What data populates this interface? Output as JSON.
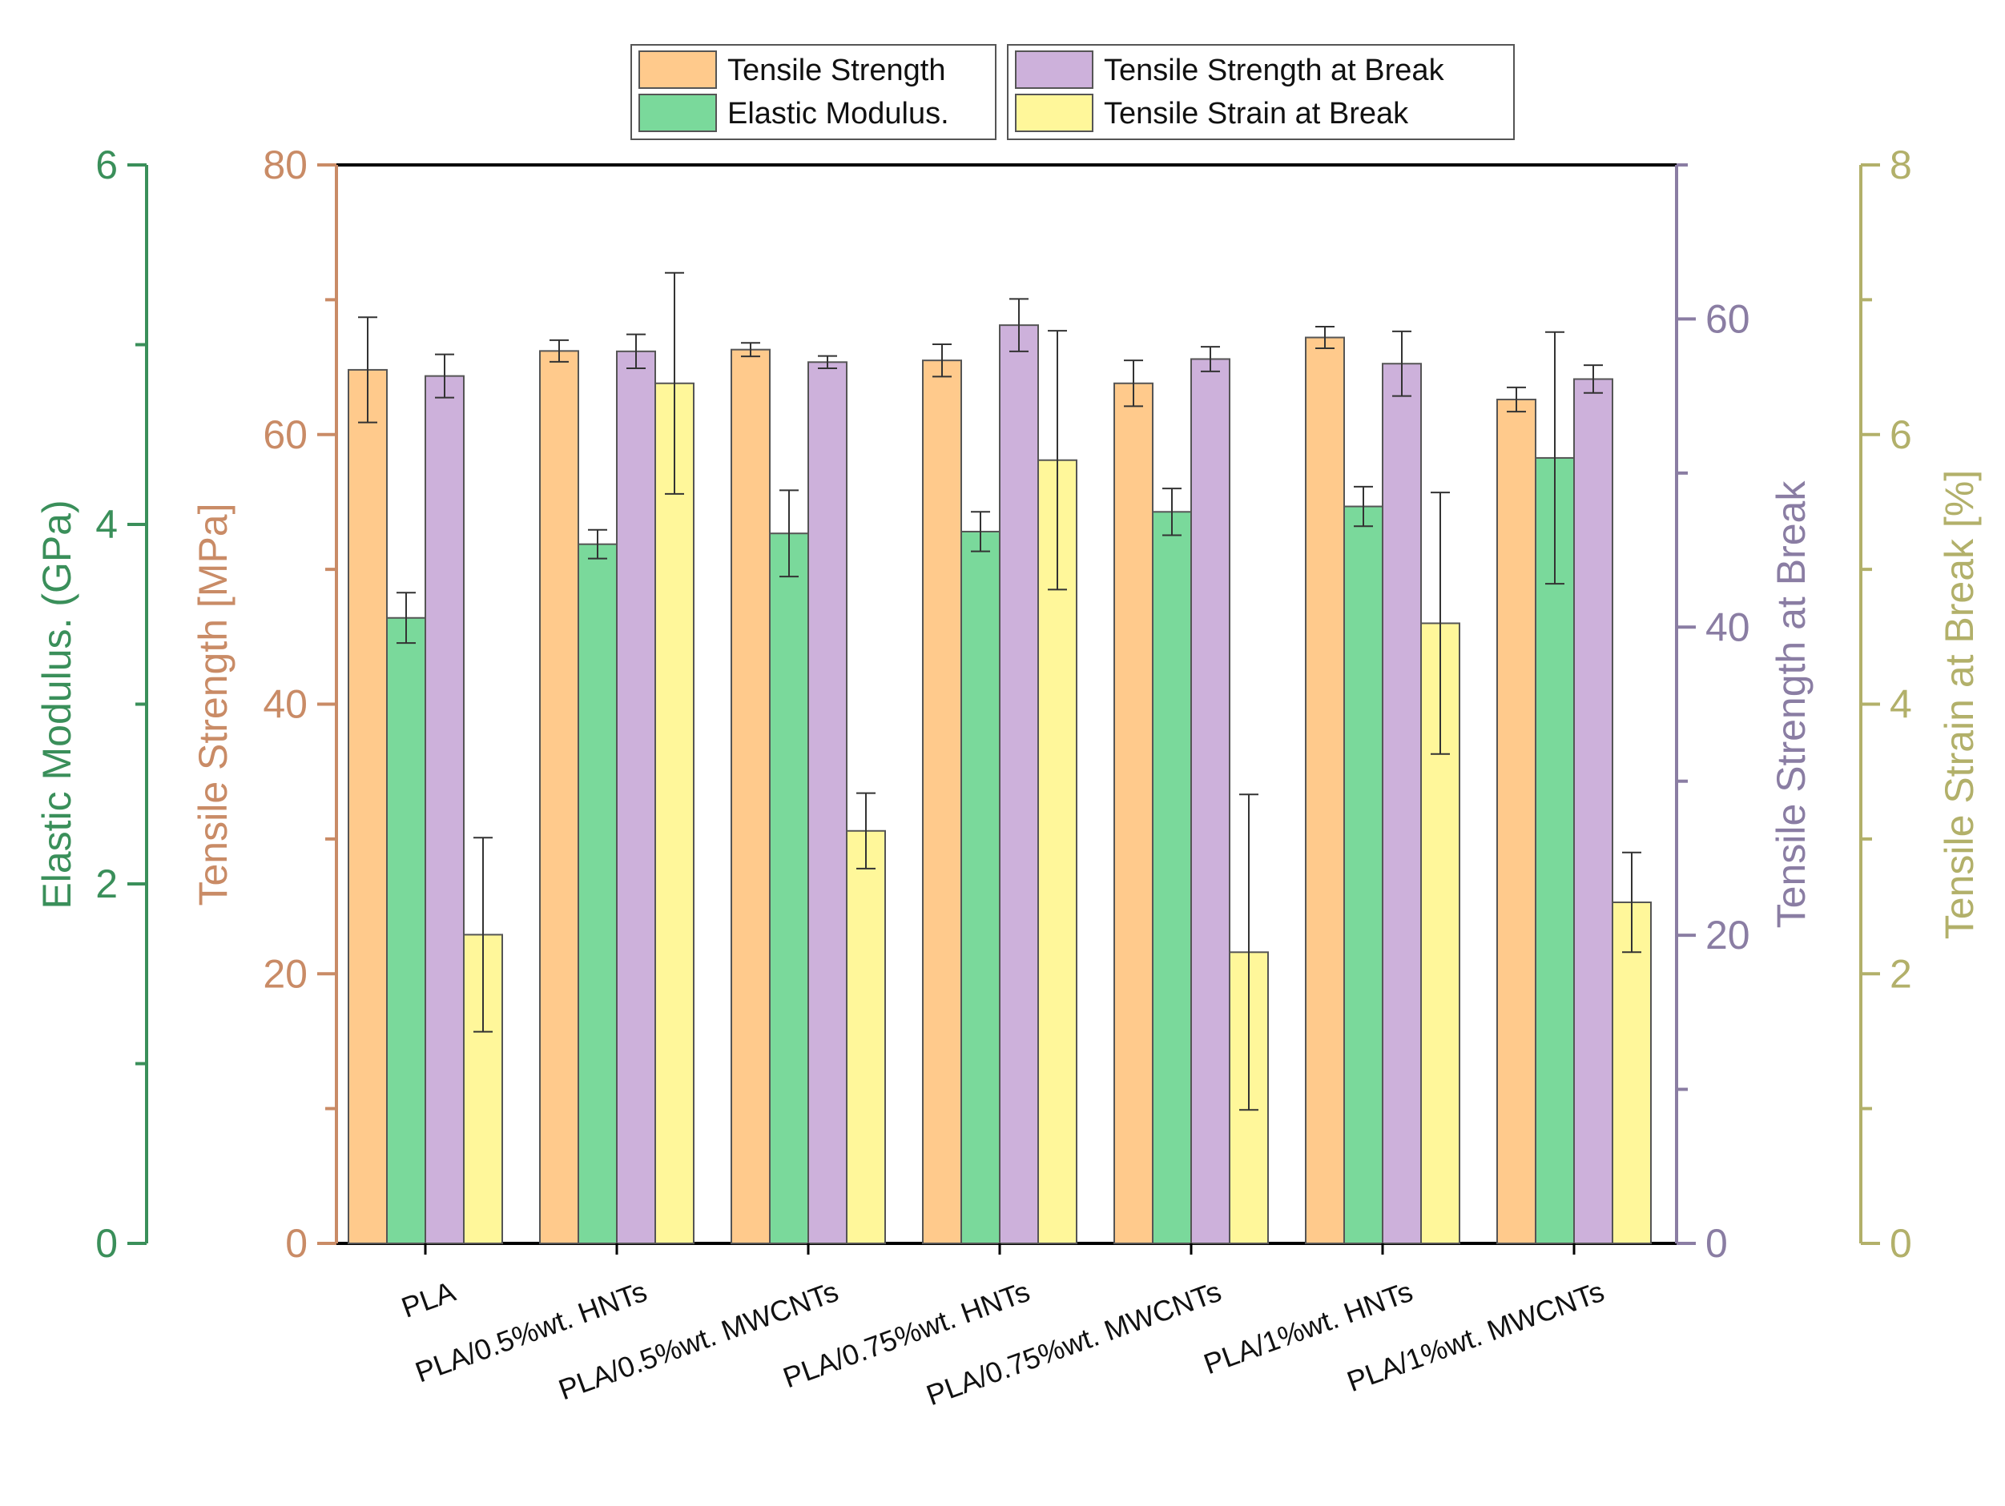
{
  "chart_data": {
    "type": "bar",
    "title": "",
    "categories": [
      "PLA",
      "PLA/0.5%wt. HNTs",
      "PLA/0.5%wt. MWCNTs",
      "PLA/0.75%wt. HNTs",
      "PLA/0.75%wt. MWCNTs",
      "PLA/1%wt. HNTs",
      "PLA/1%wt. MWCNTs"
    ],
    "series": [
      {
        "key": "tensile_strength",
        "name": "Tensile Strength",
        "axis": "tensile_strength",
        "color": "#FFCA8C",
        "values": [
          64.8,
          66.2,
          66.3,
          65.5,
          63.8,
          67.2,
          62.6
        ],
        "errors": [
          3.9,
          0.8,
          0.5,
          1.2,
          1.7,
          0.8,
          0.9
        ]
      },
      {
        "key": "elastic_modulus",
        "name": "Elastic Modulus.",
        "axis": "elastic_modulus",
        "color": "#7AD99B",
        "values": [
          3.48,
          3.89,
          3.95,
          3.96,
          4.07,
          4.1,
          4.37
        ],
        "errors": [
          0.14,
          0.08,
          0.24,
          0.11,
          0.13,
          0.11,
          0.7
        ]
      },
      {
        "key": "tensile_strength_break",
        "name": "Tensile Strength at Break",
        "axis": "tensile_strength_break",
        "color": "#CDB1DB",
        "values": [
          56.3,
          57.9,
          57.2,
          59.6,
          57.4,
          57.1,
          56.1
        ],
        "errors": [
          1.4,
          1.1,
          0.4,
          1.7,
          0.8,
          2.1,
          0.9
        ]
      },
      {
        "key": "tensile_strain_break",
        "name": "Tensile Strain at Break",
        "axis": "tensile_strain_break",
        "color": "#FFF79A",
        "values": [
          2.29,
          6.38,
          3.06,
          5.81,
          2.16,
          4.6,
          2.53
        ],
        "errors": [
          0.72,
          0.82,
          0.28,
          0.96,
          1.17,
          0.97,
          0.37
        ]
      }
    ],
    "axes": {
      "elastic_modulus": {
        "label": "Elastic Modulus. (GPa)",
        "min": 0,
        "max": 6,
        "ticks": [
          0,
          2,
          4,
          6
        ],
        "color": "#3A8F5A"
      },
      "tensile_strength": {
        "label": "Tensile Strength [MPa]",
        "min": 0,
        "max": 80,
        "ticks": [
          0,
          20,
          40,
          60,
          80
        ],
        "color": "#C98B66"
      },
      "tensile_strength_break": {
        "label": "Tensile Strength at Break",
        "min": 0,
        "max": 70,
        "ticks": [
          0,
          20,
          40,
          60
        ],
        "color": "#8A7DA3"
      },
      "tensile_strain_break": {
        "label": "Tensile Strain at Break [%]",
        "min": 0,
        "max": 8,
        "ticks": [
          0,
          2,
          4,
          6,
          8
        ],
        "color": "#B2B06A"
      }
    },
    "legend": {
      "placement": "top",
      "groups": [
        [
          "Tensile Strength",
          "Elastic Modulus."
        ],
        [
          "Tensile Strength at Break",
          "Tensile Strain at Break"
        ]
      ]
    },
    "grid": false
  }
}
